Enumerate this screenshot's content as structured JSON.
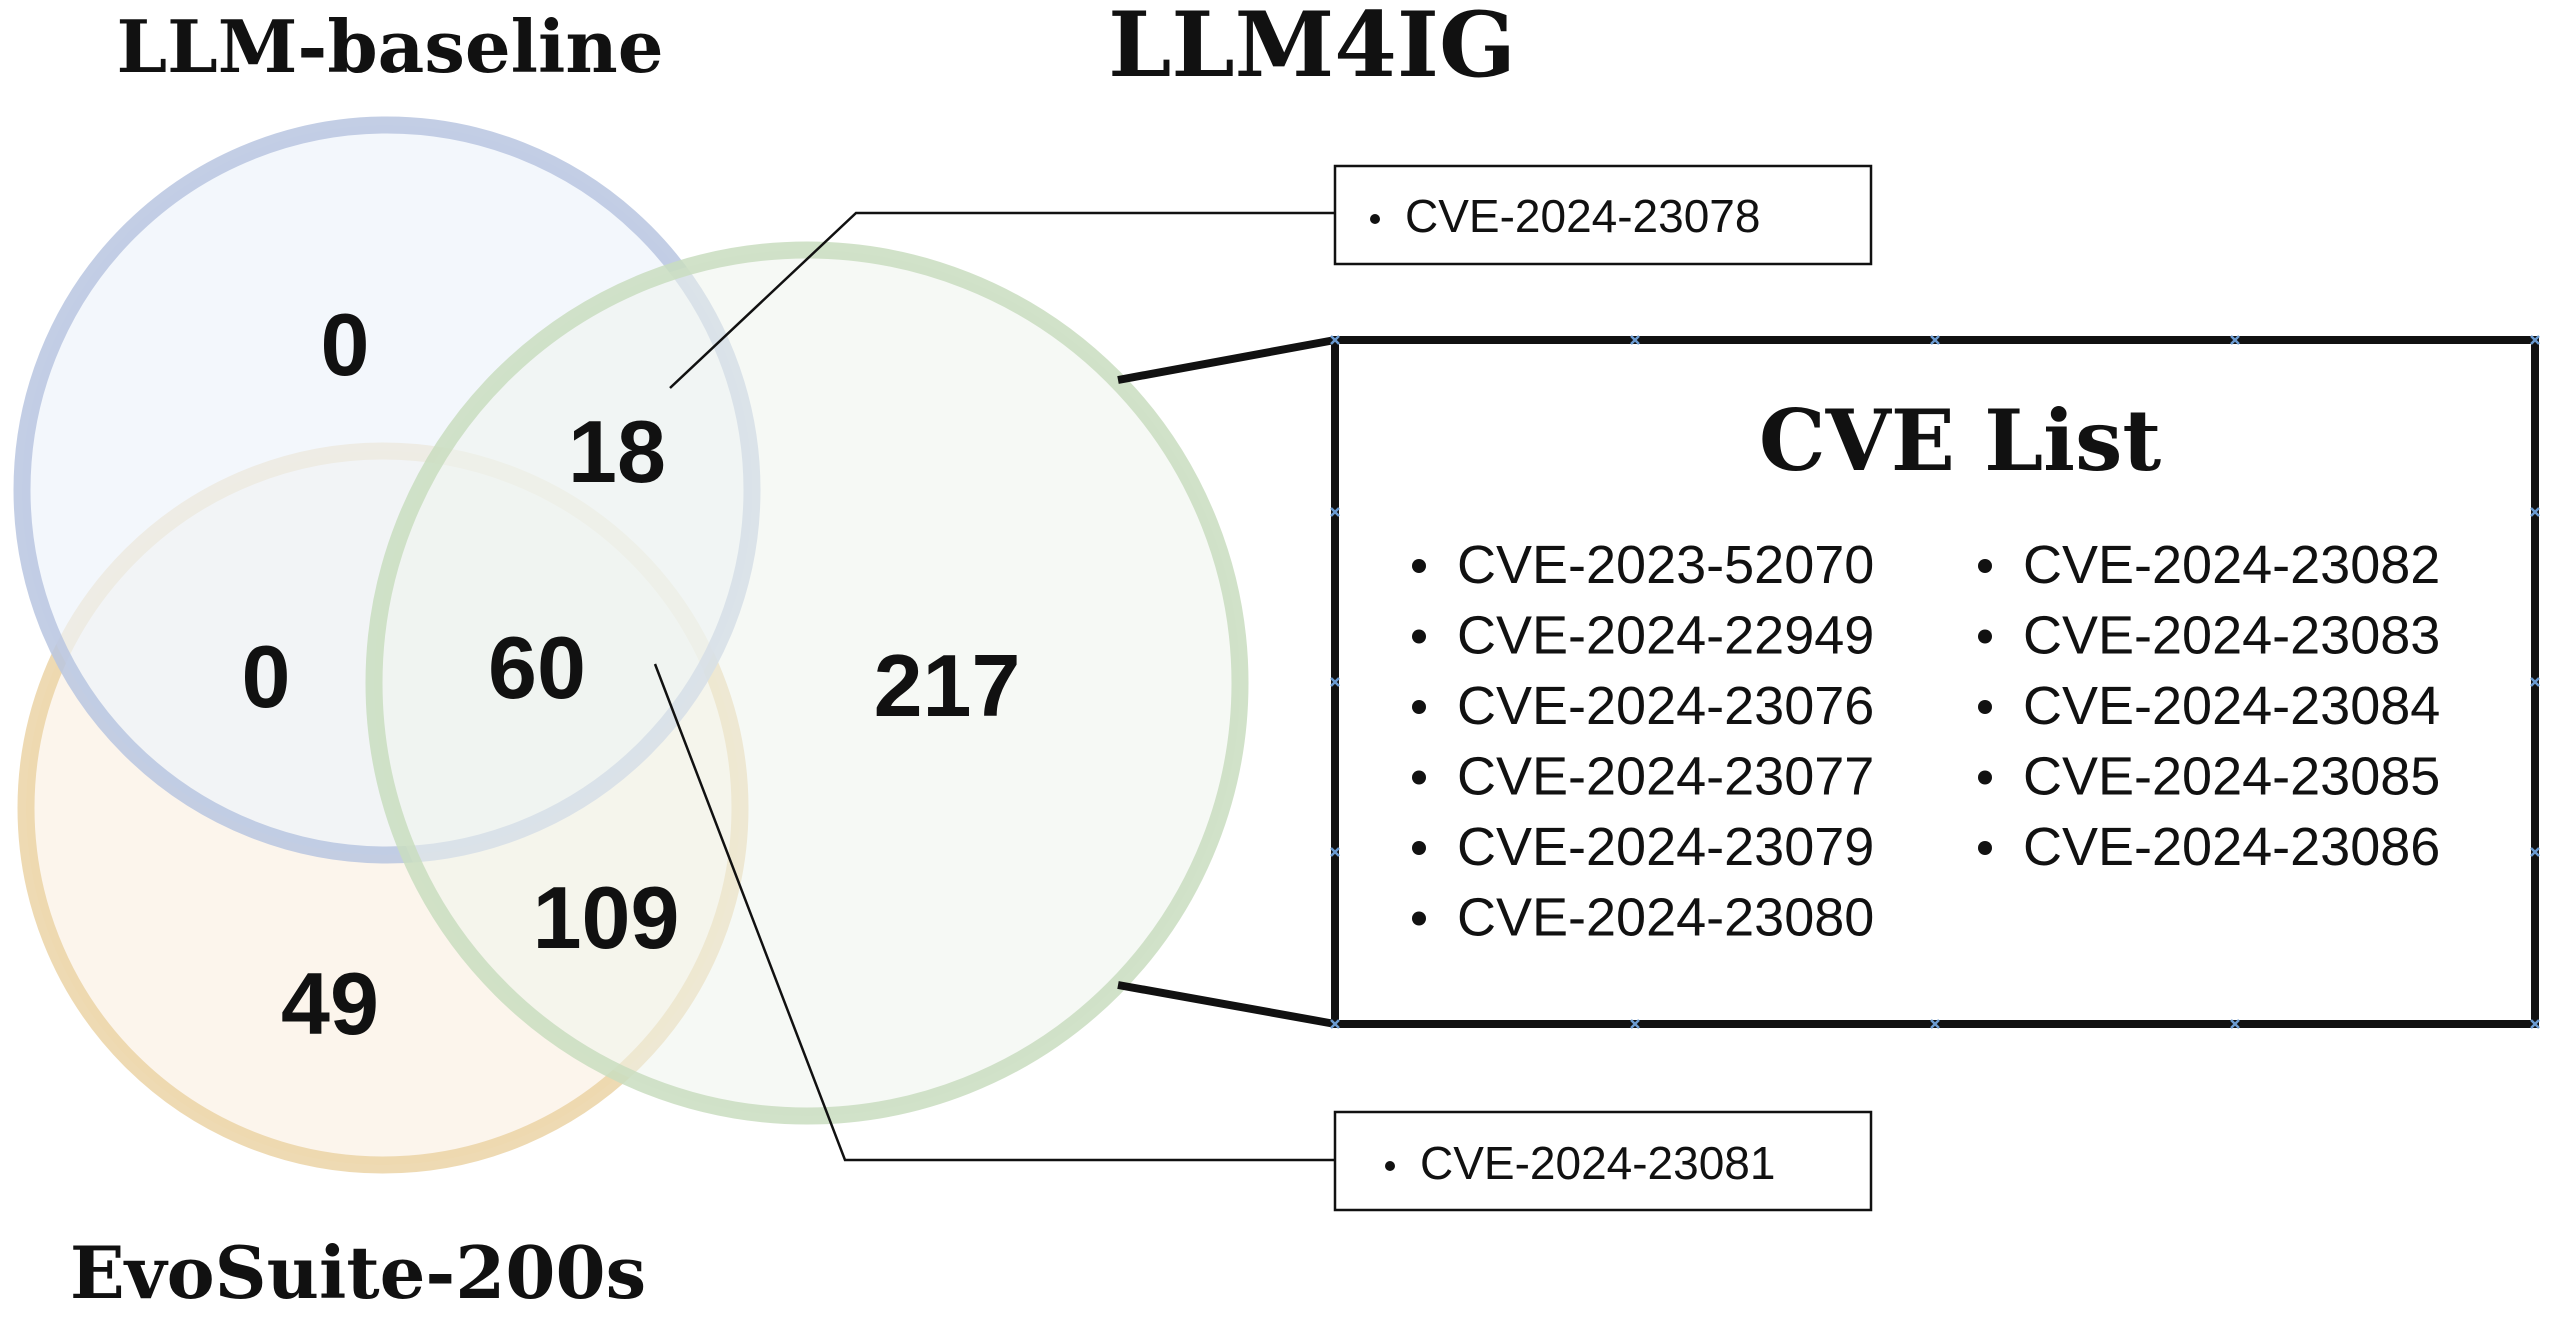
{
  "sets": {
    "llm_baseline": {
      "label": "LLM-baseline",
      "fill": "#EEF3FB",
      "stroke": "#B9C6E0"
    },
    "llm4ig": {
      "label": "LLM4IG",
      "fill": "#EEF4EC",
      "stroke": "#C9DDBF"
    },
    "evosuite": {
      "label": "EvoSuite-200s",
      "fill": "#FBF1E6",
      "stroke": "#EBD4A6"
    }
  },
  "regions": {
    "baseline_only": "0",
    "baseline_llm4ig": "18",
    "baseline_evosuite": "0",
    "all_three": "60",
    "llm4ig_only": "217",
    "llm4ig_evosuite": "109",
    "evosuite_only": "49"
  },
  "callouts": {
    "top": {
      "items": [
        "CVE-2024-23078"
      ]
    },
    "bottom": {
      "items": [
        "CVE-2024-23081"
      ]
    }
  },
  "cve_list": {
    "title": "CVE List",
    "left_column": [
      "CVE-2023-52070",
      "CVE-2024-22949",
      "CVE-2024-23076",
      "CVE-2024-23077",
      "CVE-2024-23079",
      "CVE-2024-23080"
    ],
    "right_column": [
      "CVE-2024-23082",
      "CVE-2024-23083",
      "CVE-2024-23084",
      "CVE-2024-23085",
      "CVE-2024-23086"
    ]
  }
}
